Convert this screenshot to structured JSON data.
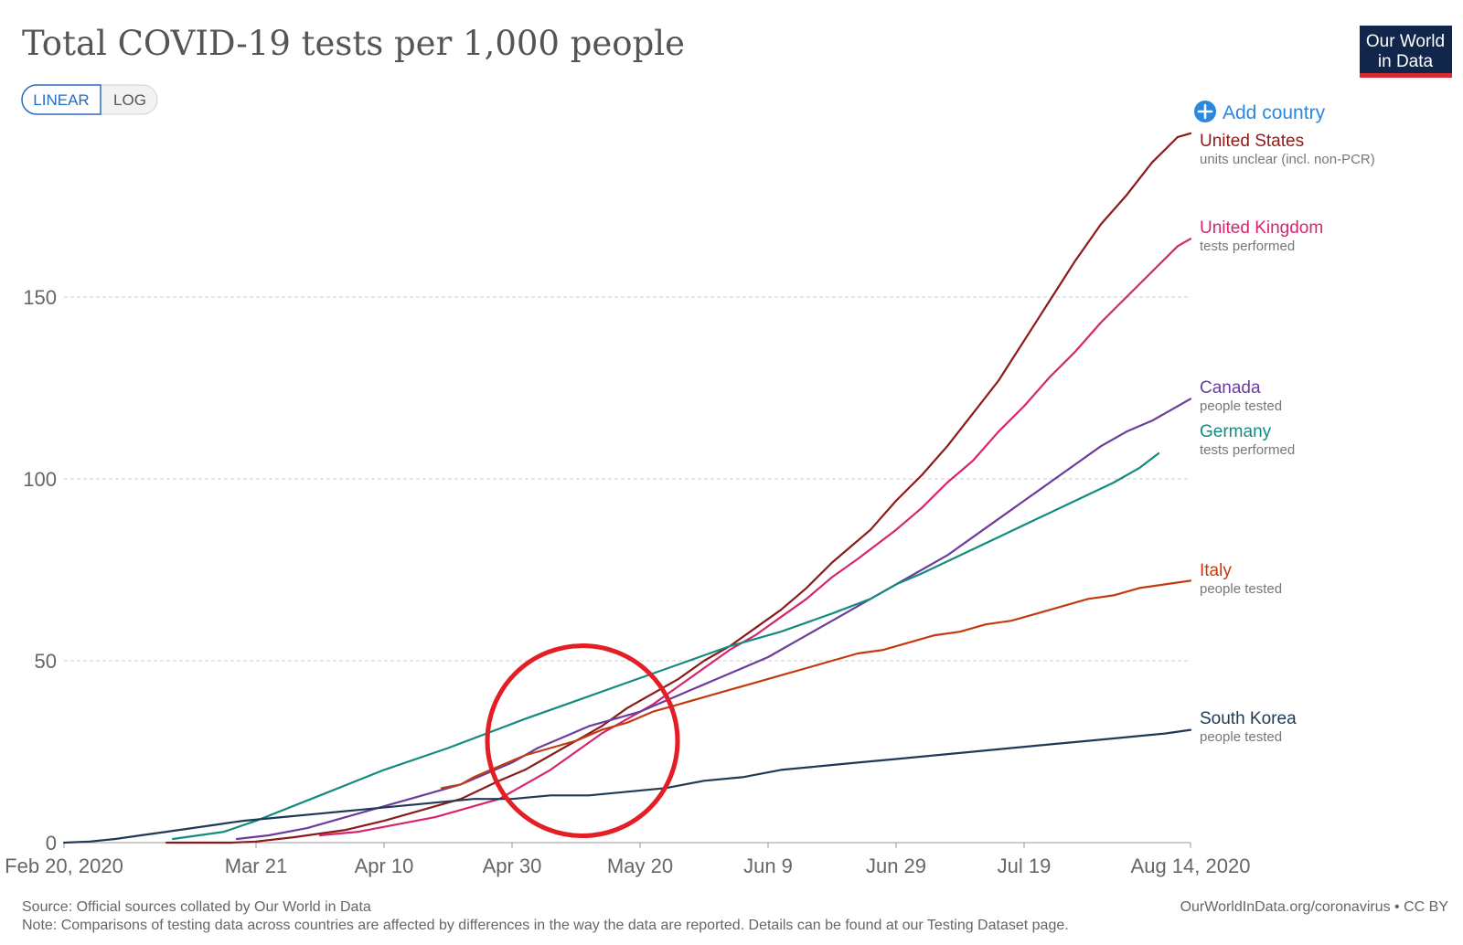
{
  "chart_data": {
    "type": "line",
    "title": "Total COVID-19 tests per 1,000 people",
    "scale_toggle": {
      "options": [
        "LINEAR",
        "LOG"
      ],
      "selected": "LINEAR"
    },
    "add_country_label": "Add country",
    "logo_text": [
      "Our World",
      "in Data"
    ],
    "x_ticks": [
      {
        "day": 0,
        "label": "Feb 20, 2020"
      },
      {
        "day": 30,
        "label": "Mar 21"
      },
      {
        "day": 50,
        "label": "Apr 10"
      },
      {
        "day": 70,
        "label": "Apr 30"
      },
      {
        "day": 90,
        "label": "May 20"
      },
      {
        "day": 110,
        "label": "Jun 9"
      },
      {
        "day": 130,
        "label": "Jun 29"
      },
      {
        "day": 150,
        "label": "Jul 19"
      },
      {
        "day": 176,
        "label": "Aug 14, 2020"
      }
    ],
    "x_range_days": [
      0,
      176
    ],
    "ylim": [
      0,
      200
    ],
    "y_ticks": [
      0,
      50,
      100,
      150
    ],
    "series": [
      {
        "name": "United States",
        "note": "units unclear (incl. non-PCR)",
        "color": "#8b1a1a",
        "points": [
          [
            16,
            0
          ],
          [
            26,
            0
          ],
          [
            30,
            0.3
          ],
          [
            36,
            1.5
          ],
          [
            44,
            3.5
          ],
          [
            50,
            6
          ],
          [
            56,
            9
          ],
          [
            62,
            12
          ],
          [
            68,
            17
          ],
          [
            72,
            20
          ],
          [
            76,
            24
          ],
          [
            80,
            28
          ],
          [
            84,
            32
          ],
          [
            88,
            37
          ],
          [
            92,
            41
          ],
          [
            96,
            45
          ],
          [
            100,
            50
          ],
          [
            104,
            54
          ],
          [
            108,
            59
          ],
          [
            112,
            64
          ],
          [
            116,
            70
          ],
          [
            120,
            77
          ],
          [
            126,
            86
          ],
          [
            130,
            94
          ],
          [
            134,
            101
          ],
          [
            138,
            109
          ],
          [
            142,
            118
          ],
          [
            146,
            127
          ],
          [
            150,
            138
          ],
          [
            154,
            149
          ],
          [
            158,
            160
          ],
          [
            162,
            170
          ],
          [
            166,
            178
          ],
          [
            170,
            187
          ],
          [
            174,
            194
          ],
          [
            176,
            195
          ]
        ]
      },
      {
        "name": "United Kingdom",
        "note": "tests performed",
        "color": "#d6246e",
        "points": [
          [
            40,
            2
          ],
          [
            46,
            3
          ],
          [
            52,
            5
          ],
          [
            58,
            7
          ],
          [
            64,
            10
          ],
          [
            68,
            12
          ],
          [
            72,
            16
          ],
          [
            76,
            20
          ],
          [
            80,
            25
          ],
          [
            84,
            30
          ],
          [
            88,
            34
          ],
          [
            92,
            38
          ],
          [
            96,
            43
          ],
          [
            100,
            48
          ],
          [
            104,
            53
          ],
          [
            108,
            57
          ],
          [
            112,
            62
          ],
          [
            116,
            67
          ],
          [
            120,
            73
          ],
          [
            124,
            78
          ],
          [
            130,
            86
          ],
          [
            134,
            92
          ],
          [
            138,
            99
          ],
          [
            142,
            105
          ],
          [
            146,
            113
          ],
          [
            150,
            120
          ],
          [
            154,
            128
          ],
          [
            158,
            135
          ],
          [
            162,
            143
          ],
          [
            166,
            150
          ],
          [
            170,
            157
          ],
          [
            174,
            164
          ],
          [
            176,
            166
          ]
        ]
      },
      {
        "name": "Canada",
        "note": "people tested",
        "color": "#6a3d9a",
        "points": [
          [
            27,
            1
          ],
          [
            32,
            2
          ],
          [
            38,
            4
          ],
          [
            44,
            7
          ],
          [
            50,
            10
          ],
          [
            56,
            13
          ],
          [
            62,
            16
          ],
          [
            66,
            19
          ],
          [
            70,
            22
          ],
          [
            74,
            26
          ],
          [
            78,
            29
          ],
          [
            82,
            32
          ],
          [
            86,
            34
          ],
          [
            90,
            36
          ],
          [
            94,
            39
          ],
          [
            98,
            42
          ],
          [
            102,
            45
          ],
          [
            106,
            48
          ],
          [
            110,
            51
          ],
          [
            114,
            55
          ],
          [
            118,
            59
          ],
          [
            122,
            63
          ],
          [
            126,
            67
          ],
          [
            130,
            71
          ],
          [
            134,
            75
          ],
          [
            138,
            79
          ],
          [
            142,
            84
          ],
          [
            146,
            89
          ],
          [
            150,
            94
          ],
          [
            154,
            99
          ],
          [
            158,
            104
          ],
          [
            162,
            109
          ],
          [
            166,
            113
          ],
          [
            170,
            116
          ],
          [
            174,
            120
          ],
          [
            176,
            122
          ]
        ]
      },
      {
        "name": "Germany",
        "note": "tests performed",
        "color": "#138b7f",
        "points": [
          [
            17,
            1
          ],
          [
            25,
            3
          ],
          [
            30,
            6
          ],
          [
            40,
            13
          ],
          [
            50,
            20
          ],
          [
            60,
            26
          ],
          [
            66,
            30
          ],
          [
            72,
            34
          ],
          [
            80,
            39
          ],
          [
            88,
            44
          ],
          [
            96,
            49
          ],
          [
            104,
            54
          ],
          [
            112,
            58
          ],
          [
            120,
            63
          ],
          [
            126,
            67
          ],
          [
            130,
            71
          ],
          [
            134,
            74
          ],
          [
            140,
            79
          ],
          [
            146,
            84
          ],
          [
            152,
            89
          ],
          [
            158,
            94
          ],
          [
            164,
            99
          ],
          [
            168,
            103
          ],
          [
            171,
            107
          ]
        ]
      },
      {
        "name": "Italy",
        "note": "people tested",
        "color": "#c23b0e",
        "points": [
          [
            59,
            15
          ],
          [
            62,
            16
          ],
          [
            64,
            18
          ],
          [
            68,
            21
          ],
          [
            72,
            24
          ],
          [
            76,
            26
          ],
          [
            80,
            28
          ],
          [
            84,
            31
          ],
          [
            88,
            33
          ],
          [
            92,
            36
          ],
          [
            96,
            38
          ],
          [
            100,
            40
          ],
          [
            104,
            42
          ],
          [
            108,
            44
          ],
          [
            112,
            46
          ],
          [
            116,
            48
          ],
          [
            120,
            50
          ],
          [
            124,
            52
          ],
          [
            128,
            53
          ],
          [
            132,
            55
          ],
          [
            136,
            57
          ],
          [
            140,
            58
          ],
          [
            144,
            60
          ],
          [
            148,
            61
          ],
          [
            152,
            63
          ],
          [
            156,
            65
          ],
          [
            160,
            67
          ],
          [
            164,
            68
          ],
          [
            168,
            70
          ],
          [
            172,
            71
          ],
          [
            176,
            72
          ]
        ]
      },
      {
        "name": "South Korea",
        "note": "people tested",
        "color": "#1f3a57",
        "points": [
          [
            0,
            0
          ],
          [
            4,
            0.3
          ],
          [
            8,
            1
          ],
          [
            12,
            2
          ],
          [
            16,
            3
          ],
          [
            20,
            4
          ],
          [
            24,
            5
          ],
          [
            28,
            6
          ],
          [
            34,
            7
          ],
          [
            40,
            8
          ],
          [
            46,
            9
          ],
          [
            52,
            10
          ],
          [
            58,
            11
          ],
          [
            64,
            12
          ],
          [
            70,
            12
          ],
          [
            76,
            13
          ],
          [
            82,
            13
          ],
          [
            88,
            14
          ],
          [
            94,
            15
          ],
          [
            100,
            17
          ],
          [
            106,
            18
          ],
          [
            112,
            20
          ],
          [
            118,
            21
          ],
          [
            124,
            22
          ],
          [
            130,
            23
          ],
          [
            136,
            24
          ],
          [
            142,
            25
          ],
          [
            148,
            26
          ],
          [
            154,
            27
          ],
          [
            160,
            28
          ],
          [
            166,
            29
          ],
          [
            172,
            30
          ],
          [
            176,
            31
          ]
        ]
      }
    ],
    "annotation": {
      "shape": "circle",
      "color": "#e31e24",
      "center_day": 81,
      "center_value": 28
    },
    "source": "Source: Official sources collated by Our World in Data",
    "note": "Note: Comparisons of testing data across countries are affected by differences in the way the data are reported. Details can be found at our Testing Dataset page.",
    "credit": "OurWorldInData.org/coronavirus • CC BY"
  }
}
